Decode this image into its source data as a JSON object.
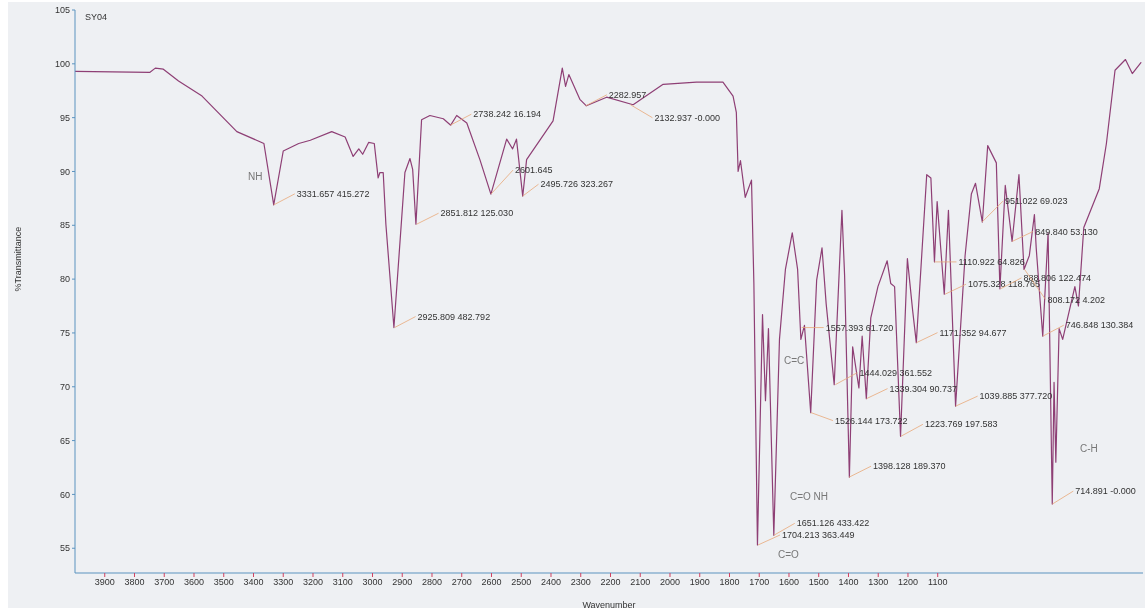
{
  "chart_data": {
    "type": "line",
    "title": "SY04",
    "xlabel": "Wavenumber",
    "ylabel": "%Transmittance",
    "xlim": [
      4000,
      410
    ],
    "ylim": [
      52.7,
      105
    ],
    "xticks": [
      3900,
      3800,
      3700,
      3600,
      3500,
      3400,
      3300,
      3200,
      3100,
      3000,
      2900,
      2800,
      2700,
      2600,
      2500,
      2400,
      2300,
      2200,
      2100,
      2000,
      1900,
      1800,
      1700,
      1600,
      1500,
      1400,
      1300,
      1200,
      1100
    ],
    "yticks": [
      55,
      60,
      65,
      70,
      75,
      80,
      85,
      90,
      95,
      100,
      105
    ],
    "x": [
      4000,
      3749,
      3730,
      3703,
      3652,
      3573,
      3456,
      3365,
      3332,
      3300,
      3248,
      3209,
      3137,
      3092,
      3065,
      3046,
      3033,
      3013,
      2994,
      2981,
      2975,
      2964,
      2955,
      2928,
      2891,
      2874,
      2865,
      2854,
      2835,
      2807,
      2762,
      2737,
      2717,
      2683,
      2639,
      2602,
      2549,
      2529,
      2516,
      2495,
      2482,
      2393,
      2362,
      2351,
      2340,
      2303,
      2281,
      2213,
      2124,
      2023,
      1911,
      1822,
      1788,
      1777,
      1771,
      1763,
      1747,
      1726,
      1718,
      1706,
      1689,
      1679,
      1669,
      1651,
      1632,
      1612,
      1589,
      1571,
      1560,
      1548,
      1527,
      1507,
      1489,
      1475,
      1448,
      1422,
      1413,
      1397,
      1386,
      1365,
      1354,
      1340,
      1325,
      1301,
      1270,
      1258,
      1245,
      1225,
      1202,
      1184,
      1172,
      1137,
      1123,
      1111,
      1102,
      1078,
      1064,
      1040,
      1008,
      987,
      973,
      950,
      932,
      903,
      891,
      873,
      850,
      827,
      810,
      792,
      775,
      769,
      747,
      729,
      715,
      709,
      703,
      692,
      680,
      639,
      627,
      609,
      557,
      533,
      504,
      469,
      446,
      417
    ],
    "series": [
      {
        "color": "#8e3f75",
        "values": [
          99.3,
          99.2,
          99.6,
          99.5,
          98.4,
          97.0,
          93.7,
          92.6,
          86.9,
          91.9,
          92.6,
          92.9,
          93.7,
          93.2,
          91.4,
          92.1,
          91.6,
          92.7,
          92.6,
          89.4,
          89.9,
          89.9,
          85.1,
          75.5,
          89.9,
          91.2,
          90.2,
          85.1,
          94.8,
          95.2,
          94.9,
          94.3,
          95.2,
          94.5,
          91.1,
          87.9,
          93.0,
          92.1,
          93.0,
          87.7,
          91.1,
          94.7,
          99.6,
          97.9,
          99.0,
          96.7,
          96.1,
          96.9,
          96.2,
          98.1,
          98.3,
          98.3,
          97.0,
          95.5,
          90.0,
          91.0,
          87.6,
          89.2,
          79.6,
          55.3,
          76.7,
          68.7,
          75.4,
          56.2,
          74.4,
          80.9,
          84.3,
          80.9,
          74.4,
          75.7,
          67.6,
          79.9,
          82.9,
          77.7,
          70.2,
          86.4,
          80.3,
          61.6,
          73.7,
          69.9,
          74.7,
          68.9,
          76.4,
          79.3,
          81.7,
          79.6,
          79.3,
          65.4,
          81.9,
          77.0,
          74.1,
          89.7,
          89.4,
          81.6,
          87.2,
          78.6,
          86.4,
          68.2,
          82.2,
          87.9,
          88.9,
          85.3,
          92.4,
          90.8,
          79.1,
          88.7,
          83.5,
          89.7,
          80.9,
          82.2,
          86.0,
          82.9,
          74.7,
          84.3,
          59.1,
          70.4,
          63.0,
          75.4,
          74.4,
          79.3,
          77.5,
          84.8,
          88.4,
          92.6,
          99.4,
          100.4,
          99.1,
          100.1
        ]
      }
    ],
    "annotations": [
      {
        "text": "3331.657  415.272",
        "x": 3331.657,
        "y": 86.9
      },
      {
        "text": "2925.809  482.792",
        "x": 2925.809,
        "y": 75.5
      },
      {
        "text": "2851.812  125.030",
        "x": 2851.812,
        "y": 85.1
      },
      {
        "text": "2738.242  16.194",
        "x": 2738.242,
        "y": 94.3
      },
      {
        "text": "2601.645",
        "x": 2601.645,
        "y": 87.9
      },
      {
        "text": "2495.726  323.267",
        "x": 2495.726,
        "y": 87.7
      },
      {
        "text": "2282.957",
        "x": 2282.957,
        "y": 96.1
      },
      {
        "text": "2132.937  -0.000",
        "x": 2132.937,
        "y": 96.2
      },
      {
        "text": "1704.213  363.449",
        "x": 1704.213,
        "y": 55.3
      },
      {
        "text": "1651.126  433.422",
        "x": 1651.126,
        "y": 56.2
      },
      {
        "text": "1557.393  61.720",
        "x": 1557.393,
        "y": 75.5
      },
      {
        "text": "1526.144  173.722",
        "x": 1526.144,
        "y": 67.6
      },
      {
        "text": "1444.029  361.552",
        "x": 1444.029,
        "y": 70.2
      },
      {
        "text": "1398.128  189.370",
        "x": 1398.128,
        "y": 61.6
      },
      {
        "text": "1339.304  90.737",
        "x": 1339.304,
        "y": 68.9
      },
      {
        "text": "1223.769  197.583",
        "x": 1223.769,
        "y": 65.4
      },
      {
        "text": "1171.352  94.677",
        "x": 1171.352,
        "y": 74.1
      },
      {
        "text": "1110.922  64.826",
        "x": 1110.922,
        "y": 81.6
      },
      {
        "text": "1075.328  118.765",
        "x": 1075.328,
        "y": 78.6
      },
      {
        "text": "1039.885  377.720",
        "x": 1039.885,
        "y": 68.2
      },
      {
        "text": "951.022  69.023",
        "x": 951.022,
        "y": 85.3
      },
      {
        "text": "849.840  53.130",
        "x": 849.84,
        "y": 83.5
      },
      {
        "text": "888.806  122.474",
        "x": 888.806,
        "y": 79.1
      },
      {
        "text": "808.172  4.202",
        "x": 808.172,
        "y": 80.9
      },
      {
        "text": "746.848  130.384",
        "x": 746.848,
        "y": 74.7
      },
      {
        "text": "714.891  -0.000",
        "x": 714.891,
        "y": 59.1
      },
      "NH",
      "C=C",
      "C=O NH",
      "C=O",
      "C-H"
    ]
  }
}
